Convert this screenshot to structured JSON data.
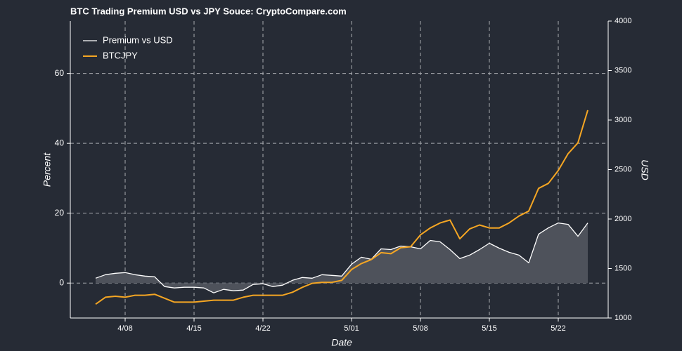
{
  "chart_data": {
    "type": "line",
    "title": "BTC Trading Premium USD vs JPY Souce: CryptoCompare.com",
    "xlabel": "Date",
    "ylabel": "Percent",
    "y2label": "USD",
    "categories": [
      null,
      null,
      null,
      "4/08",
      null,
      null,
      null,
      null,
      null,
      null,
      "4/15",
      null,
      null,
      null,
      null,
      null,
      null,
      "4/22",
      null,
      null,
      null,
      null,
      null,
      null,
      null,
      null,
      "5/01",
      null,
      null,
      null,
      null,
      null,
      null,
      "5/08",
      null,
      null,
      null,
      null,
      null,
      null,
      "5/15",
      null,
      null,
      null,
      null,
      null,
      null,
      "5/22",
      null,
      null,
      null
    ],
    "series": [
      {
        "name": "Premium vs USD",
        "color": "#ffffff",
        "fill": "#4e525b",
        "values": [
          1.4,
          2.4,
          2.8,
          3.0,
          2.4,
          2.0,
          1.8,
          -1.0,
          -1.4,
          -1.2,
          -1.2,
          -1.4,
          -2.8,
          -1.8,
          -2.2,
          -2.0,
          -0.4,
          -0.2,
          -1.0,
          -0.6,
          0.8,
          1.6,
          1.4,
          2.4,
          2.2,
          2.0,
          5.4,
          7.4,
          6.8,
          9.8,
          9.6,
          10.6,
          10.4,
          9.8,
          12.2,
          11.8,
          9.6,
          7.0,
          8.0,
          9.6,
          11.4,
          10.0,
          8.8,
          8.0,
          5.8,
          14.0,
          15.8,
          17.2,
          16.8,
          13.4,
          17.2
        ]
      },
      {
        "name": "BTCJPY",
        "color": "#f5a623",
        "axis": "y2",
        "values": [
          1140,
          1210,
          1220,
          1210,
          1230,
          1230,
          1240,
          1200,
          1160,
          1160,
          1160,
          1170,
          1180,
          1180,
          1180,
          1210,
          1230,
          1230,
          1230,
          1230,
          1260,
          1310,
          1350,
          1360,
          1360,
          1380,
          1490,
          1550,
          1590,
          1660,
          1650,
          1710,
          1720,
          1840,
          1910,
          1960,
          1990,
          1800,
          1900,
          1940,
          1910,
          1910,
          1960,
          2030,
          2080,
          2310,
          2360,
          2490,
          2660,
          2770,
          3100
        ]
      }
    ],
    "ylim": [
      -10,
      75
    ],
    "yticks": [
      0,
      20,
      40,
      60
    ],
    "y2lim": [
      1000,
      4000
    ],
    "y2ticks": [
      1000,
      1500,
      2000,
      2500,
      3000,
      3500,
      4000
    ],
    "grid": true,
    "legend": "upper left"
  }
}
